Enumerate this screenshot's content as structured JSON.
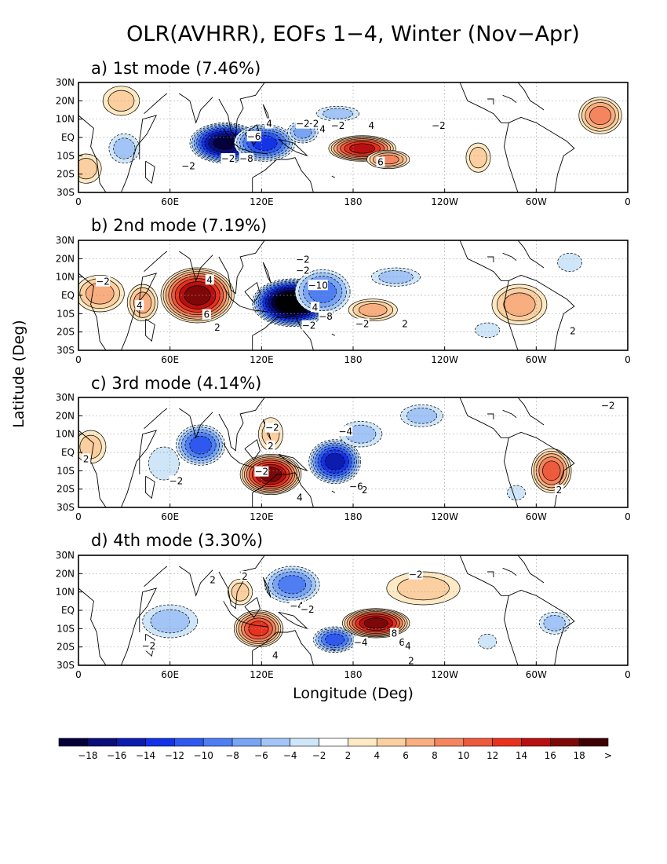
{
  "chart_data": {
    "type": "contour_map",
    "title": "OLR(AVHRR), EOFs 1−4, Winter (Nov−Apr)",
    "xlabel": "Longitude (Deg)",
    "ylabel": "Latitude (Deg)",
    "x_ticks": [
      "0",
      "60E",
      "120E",
      "180",
      "120W",
      "60W",
      "0"
    ],
    "y_ticks": [
      "30N",
      "20N",
      "10N",
      "EQ",
      "10S",
      "20S",
      "30S"
    ],
    "xlim": [
      0,
      360
    ],
    "ylim": [
      -30,
      30
    ],
    "grid": true,
    "colorbar": {
      "labels": [
        "−18",
        "−16",
        "−14",
        "−12",
        "−10",
        "−8",
        "−6",
        "−4",
        "−2",
        "2",
        "4",
        "6",
        "8",
        "10",
        "12",
        "14",
        "16",
        "18",
        ">"
      ],
      "colors": [
        "#04003a",
        "#0a0e7a",
        "#0c1cae",
        "#1432e6",
        "#2e58ee",
        "#4e7ef2",
        "#78a4f4",
        "#a2c4f6",
        "#cfe6f8",
        "#ffffff",
        "#fde9c3",
        "#fccfa1",
        "#f9ae80",
        "#f4855f",
        "#ee5a3c",
        "#e8321e",
        "#b81010",
        "#7e0808",
        "#3e0000"
      ]
    },
    "panels": [
      {
        "title": "a)  1st mode (7.46%)",
        "features": [
          {
            "sign": -1,
            "lon": 96,
            "lat": -3,
            "rlon": 23,
            "rlat": 11,
            "amp": 9
          },
          {
            "sign": -1,
            "lon": 122,
            "lat": -3,
            "rlon": 20,
            "rlat": 10,
            "amp": 6
          },
          {
            "sign": -1,
            "lon": 147,
            "lat": 3,
            "rlon": 10,
            "rlat": 6,
            "amp": 3
          },
          {
            "sign": -1,
            "lon": 30,
            "lat": -6,
            "rlon": 10,
            "rlat": 8,
            "amp": 2
          },
          {
            "sign": -1,
            "lon": 170,
            "lat": 13,
            "rlon": 14,
            "rlat": 4,
            "amp": 2
          },
          {
            "sign": 1,
            "lon": 186,
            "lat": -6,
            "rlon": 22,
            "rlat": 7,
            "amp": 7
          },
          {
            "sign": 1,
            "lon": 203,
            "lat": -12,
            "rlon": 14,
            "rlat": 5,
            "amp": 4
          },
          {
            "sign": 1,
            "lon": 342,
            "lat": 12,
            "rlon": 14,
            "rlat": 10,
            "amp": 4
          },
          {
            "sign": 1,
            "lon": 262,
            "lat": -11,
            "rlon": 8,
            "rlat": 8,
            "amp": 2
          },
          {
            "sign": 1,
            "lon": 28,
            "lat": 20,
            "rlon": 12,
            "rlat": 8,
            "amp": 2
          },
          {
            "sign": 1,
            "lon": 5,
            "lat": -17,
            "rlon": 10,
            "rlat": 8,
            "amp": 2
          }
        ],
        "labels": [
          {
            "text": "4",
            "lon": 125,
            "lat": 7
          },
          {
            "text": "−2",
            "lon": 153,
            "lat": 7
          },
          {
            "text": "−6",
            "lon": 115,
            "lat": 0
          },
          {
            "text": "−2",
            "lon": 147,
            "lat": 7
          },
          {
            "text": "−2",
            "lon": 98,
            "lat": -12
          },
          {
            "text": "−8",
            "lon": 110,
            "lat": -12
          },
          {
            "text": "−2",
            "lon": 170,
            "lat": 6
          },
          {
            "text": "4",
            "lon": 192,
            "lat": 6
          },
          {
            "text": "6",
            "lon": 198,
            "lat": -14
          },
          {
            "text": "−2",
            "lon": 72,
            "lat": -16
          },
          {
            "text": "−2",
            "lon": 236,
            "lat": 6
          },
          {
            "text": "4",
            "lon": 160,
            "lat": 4
          }
        ]
      },
      {
        "title": "b)  2nd mode (7.19%)",
        "features": [
          {
            "sign": 1,
            "lon": 78,
            "lat": 0,
            "rlon": 24,
            "rlat": 15,
            "amp": 8
          },
          {
            "sign": 1,
            "lon": 14,
            "lat": 1,
            "rlon": 16,
            "rlat": 10,
            "amp": 3
          },
          {
            "sign": 1,
            "lon": 42,
            "lat": -4,
            "rlon": 10,
            "rlat": 10,
            "amp": 3
          },
          {
            "sign": -1,
            "lon": 140,
            "lat": -4,
            "rlon": 26,
            "rlat": 13,
            "amp": 11
          },
          {
            "sign": -1,
            "lon": 160,
            "lat": 2,
            "rlon": 18,
            "rlat": 12,
            "amp": 4
          },
          {
            "sign": -1,
            "lon": 208,
            "lat": 10,
            "rlon": 16,
            "rlat": 5,
            "amp": 2
          },
          {
            "sign": 1,
            "lon": 193,
            "lat": -8,
            "rlon": 16,
            "rlat": 6,
            "amp": 3
          },
          {
            "sign": 1,
            "lon": 289,
            "lat": -5,
            "rlon": 18,
            "rlat": 11,
            "amp": 3
          },
          {
            "sign": -1,
            "lon": 268,
            "lat": -19,
            "rlon": 8,
            "rlat": 4,
            "amp": 1
          },
          {
            "sign": -1,
            "lon": 322,
            "lat": 18,
            "rlon": 8,
            "rlat": 5,
            "amp": 1
          }
        ],
        "labels": [
          {
            "text": "−2",
            "lon": 16,
            "lat": 7
          },
          {
            "text": "4",
            "lon": 86,
            "lat": 8
          },
          {
            "text": "4",
            "lon": 40,
            "lat": -6
          },
          {
            "text": "6",
            "lon": 84,
            "lat": -11
          },
          {
            "text": "2",
            "lon": 91,
            "lat": -18
          },
          {
            "text": "−2",
            "lon": 147,
            "lat": 19
          },
          {
            "text": "−2",
            "lon": 147,
            "lat": 13
          },
          {
            "text": "−10",
            "lon": 157,
            "lat": 5
          },
          {
            "text": "−2",
            "lon": 151,
            "lat": -17
          },
          {
            "text": "−8",
            "lon": 162,
            "lat": -12
          },
          {
            "text": "−2",
            "lon": 186,
            "lat": -16
          },
          {
            "text": "2",
            "lon": 214,
            "lat": -16
          },
          {
            "text": "2",
            "lon": 324,
            "lat": -20
          },
          {
            "text": "4",
            "lon": 155,
            "lat": -7
          }
        ]
      },
      {
        "title": "c)  3rd mode (4.14%)",
        "features": [
          {
            "sign": -1,
            "lon": 80,
            "lat": 4,
            "rlon": 16,
            "rlat": 11,
            "amp": 5
          },
          {
            "sign": -1,
            "lon": 56,
            "lat": -6,
            "rlon": 10,
            "rlat": 9,
            "amp": 1
          },
          {
            "sign": 1,
            "lon": 126,
            "lat": 10,
            "rlon": 8,
            "rlat": 9,
            "amp": 2
          },
          {
            "sign": 1,
            "lon": 126,
            "lat": -12,
            "rlon": 20,
            "rlat": 11,
            "amp": 8
          },
          {
            "sign": -1,
            "lon": 168,
            "lat": -5,
            "rlon": 17,
            "rlat": 12,
            "amp": 7
          },
          {
            "sign": -1,
            "lon": 185,
            "lat": 10,
            "rlon": 14,
            "rlat": 7,
            "amp": 2
          },
          {
            "sign": -1,
            "lon": 225,
            "lat": 20,
            "rlon": 14,
            "rlat": 6,
            "amp": 2
          },
          {
            "sign": 1,
            "lon": 310,
            "lat": -10,
            "rlon": 13,
            "rlat": 12,
            "amp": 5
          },
          {
            "sign": 1,
            "lon": 8,
            "lat": 3,
            "rlon": 10,
            "rlat": 9,
            "amp": 2
          },
          {
            "sign": -1,
            "lon": 287,
            "lat": -22,
            "rlon": 6,
            "rlat": 4,
            "amp": 1
          }
        ],
        "labels": [
          {
            "text": "−2",
            "lon": 64,
            "lat": -16
          },
          {
            "text": "−2",
            "lon": 120,
            "lat": -11
          },
          {
            "text": "−2",
            "lon": 127,
            "lat": 13
          },
          {
            "text": "2",
            "lon": 126,
            "lat": 3
          },
          {
            "text": "4",
            "lon": 145,
            "lat": -25
          },
          {
            "text": "−4",
            "lon": 175,
            "lat": 11
          },
          {
            "text": "−2",
            "lon": 185,
            "lat": -21
          },
          {
            "text": "−6",
            "lon": 182,
            "lat": -19
          },
          {
            "text": "−2",
            "lon": 347,
            "lat": 25
          },
          {
            "text": "2",
            "lon": 315,
            "lat": -21
          },
          {
            "text": "2",
            "lon": 5,
            "lat": -4
          }
        ]
      },
      {
        "title": "d)  4th mode (3.30%)",
        "features": [
          {
            "sign": -1,
            "lon": 60,
            "lat": -6,
            "rlon": 18,
            "rlat": 9,
            "amp": 2
          },
          {
            "sign": -1,
            "lon": 140,
            "lat": 14,
            "rlon": 18,
            "rlat": 10,
            "amp": 4
          },
          {
            "sign": -1,
            "lon": 168,
            "lat": -16,
            "rlon": 14,
            "rlat": 7,
            "amp": 5
          },
          {
            "sign": 1,
            "lon": 118,
            "lat": -10,
            "rlon": 16,
            "rlat": 10,
            "amp": 6
          },
          {
            "sign": 1,
            "lon": 106,
            "lat": 10,
            "rlon": 8,
            "rlat": 7,
            "amp": 2
          },
          {
            "sign": 1,
            "lon": 195,
            "lat": -7,
            "rlon": 22,
            "rlat": 8,
            "amp": 8
          },
          {
            "sign": 1,
            "lon": 226,
            "lat": 12,
            "rlon": 24,
            "rlat": 9,
            "amp": 2
          },
          {
            "sign": -1,
            "lon": 312,
            "lat": -7,
            "rlon": 10,
            "rlat": 6,
            "amp": 2
          },
          {
            "sign": -1,
            "lon": 268,
            "lat": -17,
            "rlon": 6,
            "rlat": 4,
            "amp": 1
          }
        ],
        "labels": [
          {
            "text": "2",
            "lon": 88,
            "lat": 16
          },
          {
            "text": "2",
            "lon": 109,
            "lat": 18
          },
          {
            "text": "−2",
            "lon": 46,
            "lat": -20
          },
          {
            "text": "−4",
            "lon": 143,
            "lat": 2
          },
          {
            "text": "−2",
            "lon": 150,
            "lat": 0
          },
          {
            "text": "4",
            "lon": 129,
            "lat": -25
          },
          {
            "text": "−4",
            "lon": 185,
            "lat": -18
          },
          {
            "text": "8",
            "lon": 207,
            "lat": -13
          },
          {
            "text": "6",
            "lon": 212,
            "lat": -18
          },
          {
            "text": "4",
            "lon": 216,
            "lat": -20
          },
          {
            "text": "−2",
            "lon": 221,
            "lat": 19
          },
          {
            "text": "2",
            "lon": 218,
            "lat": -28
          }
        ]
      }
    ]
  }
}
